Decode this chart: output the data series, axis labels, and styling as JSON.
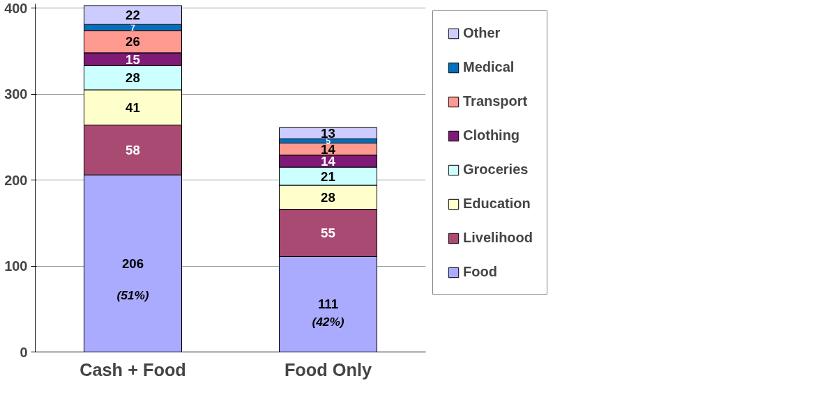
{
  "chart_data": {
    "type": "bar",
    "stacked": true,
    "categories": [
      "Cash + Food",
      "Food Only"
    ],
    "series": [
      {
        "name": "Food",
        "color": "#aaaaff",
        "values": [
          206,
          111
        ]
      },
      {
        "name": "Livelihood",
        "color": "#a94a72",
        "values": [
          58,
          55
        ]
      },
      {
        "name": "Education",
        "color": "#ffffcc",
        "values": [
          41,
          28
        ]
      },
      {
        "name": "Groceries",
        "color": "#ccffff",
        "values": [
          28,
          21
        ]
      },
      {
        "name": "Clothing",
        "color": "#7f1a76",
        "values": [
          15,
          14
        ]
      },
      {
        "name": "Transport",
        "color": "#ff9a90",
        "values": [
          26,
          14
        ]
      },
      {
        "name": "Medical",
        "color": "#0070c0",
        "values": [
          7,
          5
        ]
      },
      {
        "name": "Other",
        "color": "#ccccff",
        "values": [
          22,
          13
        ]
      }
    ],
    "ylim": [
      0,
      405
    ],
    "yticks": [
      0,
      100,
      200,
      300,
      400
    ],
    "grid": "y",
    "legend": "right",
    "data_labels": true,
    "annotations": [
      "(51%)",
      "(42%)"
    ]
  }
}
